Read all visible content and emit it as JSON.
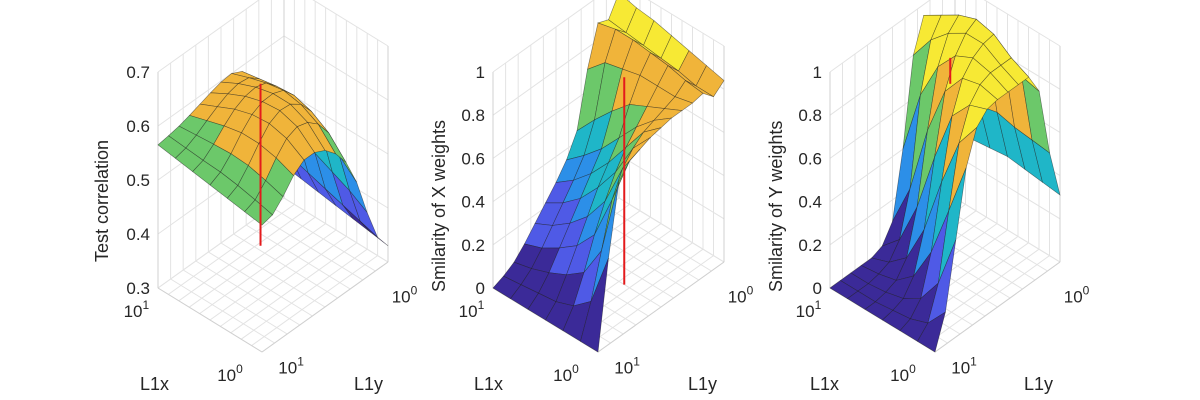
{
  "chart_data": [
    {
      "type": "surface3d",
      "ylabel": "Test correlation",
      "xlabel": "L1x",
      "zlabel_y": "L1y",
      "zlim": [
        0.3,
        0.7
      ],
      "z_ticks": [
        "0.3",
        "0.4",
        "0.5",
        "0.6",
        "0.7"
      ],
      "l1x_ticks": [
        {
          "base": "10",
          "exp": "1"
        },
        {
          "base": "10",
          "exp": "0"
        }
      ],
      "l1y_ticks": [
        {
          "base": "10",
          "exp": "1"
        },
        {
          "base": "10",
          "exp": "0"
        }
      ],
      "marker_color": "#e41a1c",
      "surface": [
        [
          0.565,
          0.568,
          0.572,
          0.578,
          0.585,
          0.592,
          0.598,
          0.6,
          0.59,
          0.56,
          0.5,
          0.42,
          0.36
        ],
        [
          0.56,
          0.565,
          0.575,
          0.588,
          0.6,
          0.61,
          0.615,
          0.612,
          0.596,
          0.56,
          0.49,
          0.41,
          0.355
        ],
        [
          0.555,
          0.562,
          0.578,
          0.598,
          0.615,
          0.625,
          0.628,
          0.622,
          0.602,
          0.56,
          0.48,
          0.4,
          0.35
        ],
        [
          0.55,
          0.56,
          0.58,
          0.605,
          0.625,
          0.635,
          0.636,
          0.628,
          0.605,
          0.555,
          0.47,
          0.39,
          0.345
        ],
        [
          0.545,
          0.555,
          0.578,
          0.605,
          0.628,
          0.638,
          0.636,
          0.622,
          0.595,
          0.54,
          0.455,
          0.38,
          0.34
        ],
        [
          0.54,
          0.548,
          0.57,
          0.598,
          0.62,
          0.628,
          0.622,
          0.605,
          0.575,
          0.52,
          0.44,
          0.37,
          0.335
        ],
        [
          0.535,
          0.54,
          0.56,
          0.585,
          0.6,
          0.6,
          0.59,
          0.57,
          0.54,
          0.49,
          0.42,
          0.36,
          0.33
        ]
      ],
      "marker": {
        "x": 0.38,
        "y": 0.5,
        "z": [
          0.34,
          0.64
        ]
      }
    },
    {
      "type": "surface3d",
      "ylabel": "Smilarity of X weights",
      "xlabel": "L1x",
      "zlabel_y": "L1y",
      "zlim": [
        0,
        1
      ],
      "z_ticks": [
        "0",
        "0.2",
        "0.4",
        "0.6",
        "0.8",
        "1"
      ],
      "l1x_ticks": [
        {
          "base": "10",
          "exp": "1"
        },
        {
          "base": "10",
          "exp": "0"
        }
      ],
      "l1y_ticks": [
        {
          "base": "10",
          "exp": "1"
        },
        {
          "base": "10",
          "exp": "0"
        }
      ],
      "marker_color": "#e41a1c",
      "surface": [
        [
          0.0,
          0.02,
          0.05,
          0.1,
          0.16,
          0.22,
          0.28,
          0.35,
          0.45,
          0.7,
          0.88,
          0.86,
          0.95
        ],
        [
          0.0,
          0.03,
          0.07,
          0.13,
          0.2,
          0.27,
          0.34,
          0.42,
          0.55,
          0.78,
          0.9,
          0.85,
          0.93
        ],
        [
          0.0,
          0.04,
          0.1,
          0.18,
          0.26,
          0.34,
          0.42,
          0.5,
          0.64,
          0.8,
          0.9,
          0.84,
          0.92
        ],
        [
          0.0,
          0.05,
          0.14,
          0.24,
          0.34,
          0.44,
          0.52,
          0.6,
          0.72,
          0.82,
          0.89,
          0.83,
          0.9
        ],
        [
          0.0,
          0.08,
          0.2,
          0.34,
          0.46,
          0.56,
          0.64,
          0.7,
          0.76,
          0.82,
          0.88,
          0.82,
          0.88
        ],
        [
          0.0,
          0.15,
          0.35,
          0.55,
          0.66,
          0.72,
          0.76,
          0.78,
          0.8,
          0.82,
          0.86,
          0.8,
          0.86
        ],
        [
          0.0,
          0.4,
          0.72,
          0.78,
          0.8,
          0.82,
          0.83,
          0.84,
          0.84,
          0.84,
          0.85,
          0.8,
          0.84
        ]
      ],
      "marker": {
        "x": 0.65,
        "y": 0.5,
        "z": [
          0.0,
          0.96
        ]
      }
    },
    {
      "type": "surface3d",
      "ylabel": "Smilarity of Y weights",
      "xlabel": "L1x",
      "zlabel_y": "L1y",
      "zlim": [
        0,
        1
      ],
      "z_ticks": [
        "0",
        "0.2",
        "0.4",
        "0.6",
        "0.8",
        "1"
      ],
      "l1x_ticks": [
        {
          "base": "10",
          "exp": "1"
        },
        {
          "base": "10",
          "exp": "0"
        }
      ],
      "l1y_ticks": [
        {
          "base": "10",
          "exp": "1"
        },
        {
          "base": "10",
          "exp": "0"
        }
      ],
      "marker_color": "#e41a1c",
      "surface": [
        [
          0.0,
          0.0,
          0.0,
          0.0,
          0.0,
          0.02,
          0.1,
          0.4,
          0.8,
          0.95,
          0.85,
          0.5,
          0.3
        ],
        [
          0.0,
          0.0,
          0.0,
          0.01,
          0.03,
          0.1,
          0.3,
          0.7,
          0.92,
          1.0,
          0.88,
          0.55,
          0.32
        ],
        [
          0.0,
          0.0,
          0.01,
          0.03,
          0.1,
          0.3,
          0.62,
          0.88,
          1.0,
          1.05,
          0.9,
          0.56,
          0.33
        ],
        [
          0.0,
          0.01,
          0.03,
          0.1,
          0.28,
          0.58,
          0.85,
          0.98,
          1.05,
          1.08,
          0.92,
          0.58,
          0.34
        ],
        [
          0.0,
          0.02,
          0.08,
          0.26,
          0.55,
          0.82,
          0.96,
          1.02,
          1.05,
          1.06,
          0.9,
          0.56,
          0.33
        ],
        [
          0.0,
          0.05,
          0.2,
          0.5,
          0.78,
          0.92,
          0.98,
          1.0,
          1.0,
          1.0,
          0.88,
          0.55,
          0.32
        ],
        [
          0.0,
          0.15,
          0.45,
          0.75,
          0.9,
          0.95,
          0.96,
          0.96,
          0.96,
          0.96,
          0.86,
          0.54,
          0.31
        ]
      ],
      "marker": {
        "x": 0.55,
        "y": 0.5,
        "z": [
          0.9,
          1.02
        ]
      }
    }
  ]
}
